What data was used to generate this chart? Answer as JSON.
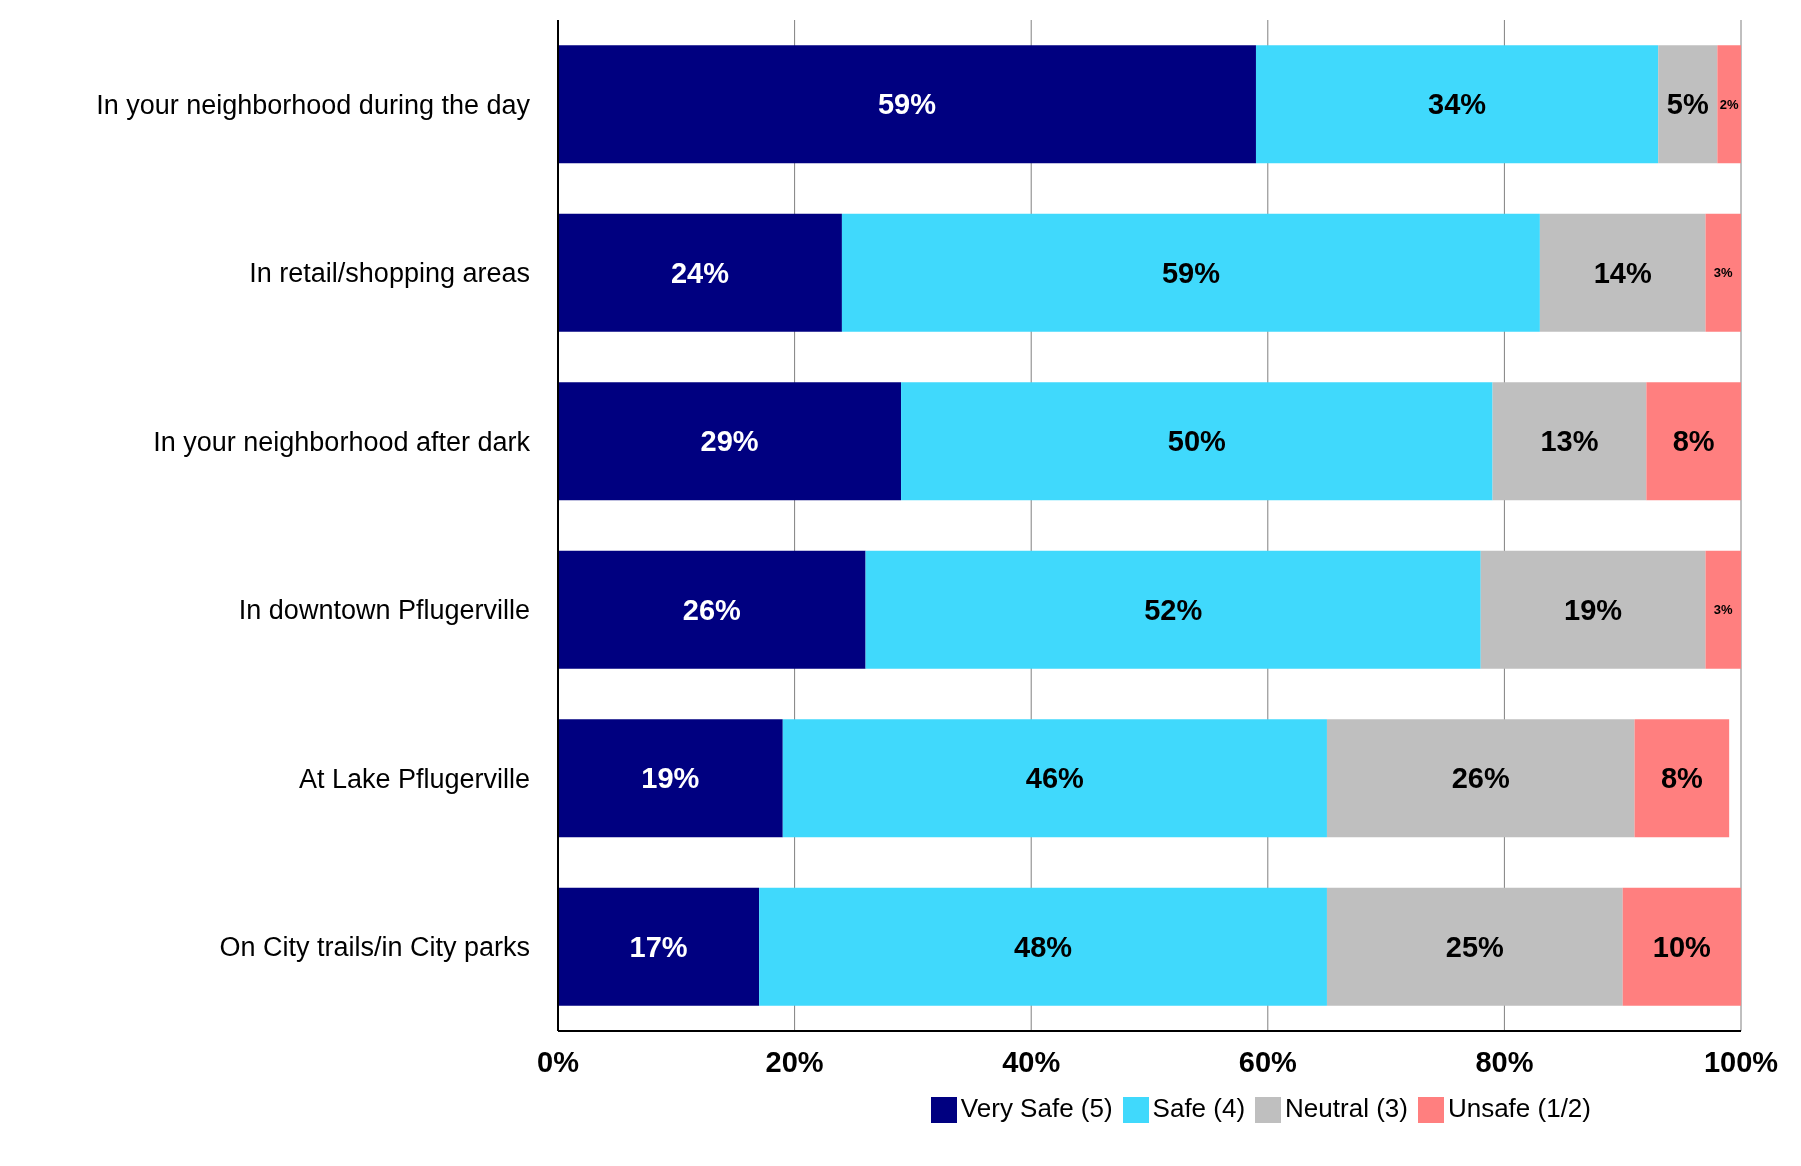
{
  "chart_data": {
    "type": "bar",
    "orientation": "horizontal",
    "stacked": true,
    "categories": [
      "In your neighborhood during the day",
      "In retail/shopping areas",
      "In your neighborhood after dark",
      "In downtown Pflugerville",
      "At Lake Pflugerville",
      "On City trails/in City parks"
    ],
    "series": [
      {
        "name": "Very Safe (5)",
        "color": "#000080",
        "values": [
          59,
          24,
          29,
          26,
          19,
          17
        ],
        "value_labels": [
          "59%",
          "24%",
          "29%",
          "26%",
          "19%",
          "17%"
        ]
      },
      {
        "name": "Safe (4)",
        "color": "#40d9fc",
        "values": [
          34,
          59,
          50,
          52,
          46,
          48
        ],
        "value_labels": [
          "34%",
          "59%",
          "50%",
          "52%",
          "46%",
          "48%"
        ]
      },
      {
        "name": "Neutral (3)",
        "color": "#bfbfbf",
        "values": [
          5,
          14,
          13,
          19,
          26,
          25
        ],
        "value_labels": [
          "5%",
          "14%",
          "13%",
          "19%",
          "26%",
          "25%"
        ]
      },
      {
        "name": "Unsafe (1/2)",
        "color": "#ff7f7f",
        "values": [
          2,
          3,
          8,
          3,
          8,
          10
        ],
        "value_labels": [
          "2%",
          "3%",
          "8%",
          "3%",
          "8%",
          "10%"
        ]
      }
    ],
    "xlim": [
      0,
      100
    ],
    "xticks": [
      {
        "value": 0,
        "label": "0%"
      },
      {
        "value": 20,
        "label": "20%"
      },
      {
        "value": 40,
        "label": "40%"
      },
      {
        "value": 60,
        "label": "60%"
      },
      {
        "value": 80,
        "label": "80%"
      },
      {
        "value": 100,
        "label": "100%"
      }
    ],
    "grid": "x",
    "legend": "bottom"
  }
}
